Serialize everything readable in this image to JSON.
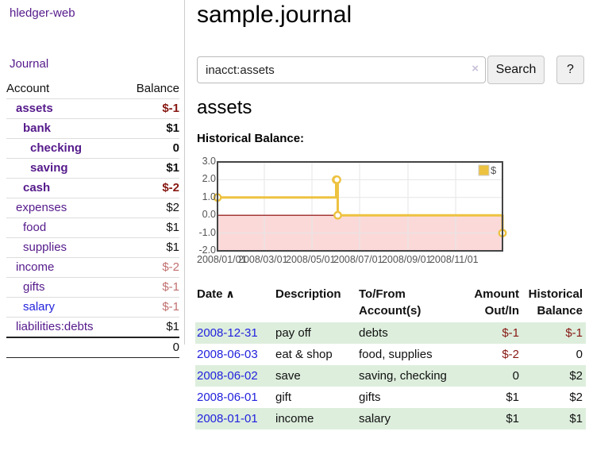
{
  "app": {
    "brand": "hledger-web",
    "nav_journal": "Journal"
  },
  "colors": {
    "link_purple": "#551A8B",
    "link_blue": "#2222dd",
    "negative": "#871812",
    "negative_dim": "#c0706f",
    "row_green": "#ddeedd",
    "series_gold": "#edc240",
    "chart_negative_fill": "#fbd9d9",
    "chart_zero_line": "#8b0000",
    "chart_grid": "#e6e6e6",
    "chart_border": "#444444",
    "tick_text": "#545454"
  },
  "sidebar": {
    "header": {
      "account": "Account",
      "balance": "Balance"
    },
    "accounts": [
      {
        "name": "assets",
        "indent": 1,
        "bold": true,
        "balance": "$-1",
        "balance_style": "neg"
      },
      {
        "name": "bank",
        "indent": 2,
        "bold": true,
        "balance": "$1",
        "balance_style": "pos"
      },
      {
        "name": "checking",
        "indent": 3,
        "bold": true,
        "balance": "0",
        "balance_style": "pos"
      },
      {
        "name": "saving",
        "indent": 3,
        "bold": true,
        "balance": "$1",
        "balance_style": "pos"
      },
      {
        "name": "cash",
        "indent": 2,
        "bold": true,
        "balance": "$-2",
        "balance_style": "neg"
      },
      {
        "name": "expenses",
        "indent": 1,
        "bold": false,
        "balance": "$2",
        "balance_style": "pos"
      },
      {
        "name": "food",
        "indent": 2,
        "bold": false,
        "balance": "$1",
        "balance_style": "pos"
      },
      {
        "name": "supplies",
        "indent": 2,
        "bold": false,
        "balance": "$1",
        "balance_style": "pos"
      },
      {
        "name": "income",
        "indent": 1,
        "bold": false,
        "balance": "$-2",
        "balance_style": "negdim"
      },
      {
        "name": "gifts",
        "indent": 2,
        "bold": false,
        "balance": "$-1",
        "balance_style": "negdim"
      },
      {
        "name": "salary",
        "indent": 2,
        "bold": false,
        "balance": "$-1",
        "balance_style": "negdim",
        "link_color": "blue"
      },
      {
        "name": "liabilities:debts",
        "indent": 1,
        "bold": false,
        "balance": "$1",
        "balance_style": "pos"
      }
    ],
    "total": "0"
  },
  "header": {
    "title": "sample.journal"
  },
  "search": {
    "value": "inacct:assets",
    "clear_icon": "×",
    "button": "Search",
    "help": "?"
  },
  "account_page": {
    "heading": "assets",
    "chart_label": "Historical Balance:"
  },
  "chart_data": {
    "type": "line",
    "title": "Historical Balance:",
    "step": true,
    "series": [
      {
        "name": "$",
        "points": [
          [
            "2008-01-01",
            1
          ],
          [
            "2008-06-01",
            2
          ],
          [
            "2008-06-02",
            2
          ],
          [
            "2008-06-03",
            0
          ],
          [
            "2008-12-31",
            -1
          ]
        ]
      }
    ],
    "x_start": "2008-01-01",
    "x_end": "2008-12-31",
    "x_ticks": [
      "2008/01/01",
      "2008/03/01",
      "2008/05/01",
      "2008/07/01",
      "2008/09/01",
      "2008/11/01"
    ],
    "y_ticks": [
      "3.0",
      "2.0",
      "1.0",
      "0.0",
      "-1.0",
      "-2.0"
    ],
    "ylim": [
      -2,
      3
    ],
    "grid": true,
    "legend_position": "top-right",
    "legend_label": "$"
  },
  "register": {
    "sort_icon": "∧",
    "columns": [
      "Date",
      "Description",
      "To/From Account(s)",
      "Amount Out/In",
      "Historical Balance"
    ],
    "rows": [
      {
        "date": "2008-12-31",
        "description": "pay off",
        "accounts": "debts",
        "amount": "$-1",
        "balance": "$-1"
      },
      {
        "date": "2008-06-03",
        "description": "eat & shop",
        "accounts": "food, supplies",
        "amount": "$-2",
        "balance": "0"
      },
      {
        "date": "2008-06-02",
        "description": "save",
        "accounts": "saving, checking",
        "amount": "0",
        "balance": "$2"
      },
      {
        "date": "2008-06-01",
        "description": "gift",
        "accounts": "gifts",
        "amount": "$1",
        "balance": "$2"
      },
      {
        "date": "2008-01-01",
        "description": "income",
        "accounts": "salary",
        "amount": "$1",
        "balance": "$1"
      }
    ]
  }
}
